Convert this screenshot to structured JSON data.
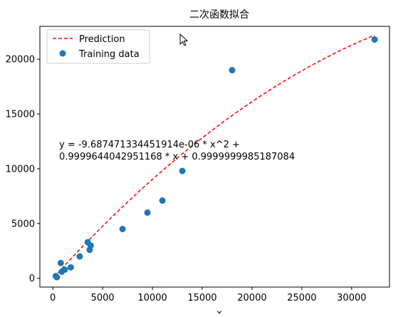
{
  "chart_data": {
    "type": "scatter",
    "title": "二次函数拟合",
    "xlabel": "x",
    "ylabel": "",
    "xlim": [
      -1300,
      33800
    ],
    "ylim": [
      -800,
      23000
    ],
    "xticks": [
      0,
      5000,
      10000,
      15000,
      20000,
      25000,
      30000
    ],
    "yticks": [
      0,
      5000,
      10000,
      15000,
      20000
    ],
    "grid": false,
    "legend_position": "top-left",
    "colors": {
      "prediction": "#ff0000",
      "training": "#1f77b4"
    },
    "fit": {
      "a": -9.687471334451914e-06,
      "b": 0.9999644042951168,
      "c": 0.9999999985187084,
      "x_range": [
        100,
        32300
      ]
    },
    "equation_lines": [
      "y = -9.687471334451914e-06 * x^2 +",
      "0.9999644042951168 * x + 0.9999999985187084"
    ],
    "series": [
      {
        "name": "Prediction",
        "kind": "line",
        "style": "dashed"
      },
      {
        "name": "Training data",
        "kind": "scatter",
        "points": [
          [
            300,
            200
          ],
          [
            400,
            100
          ],
          [
            800,
            1400
          ],
          [
            900,
            600
          ],
          [
            1200,
            800
          ],
          [
            1800,
            1000
          ],
          [
            2700,
            2000
          ],
          [
            3500,
            3300
          ],
          [
            3700,
            2600
          ],
          [
            3800,
            3000
          ],
          [
            7000,
            4500
          ],
          [
            9500,
            6000
          ],
          [
            11000,
            7100
          ],
          [
            13000,
            9800
          ],
          [
            18000,
            19000
          ],
          [
            32300,
            21800
          ]
        ]
      }
    ]
  }
}
